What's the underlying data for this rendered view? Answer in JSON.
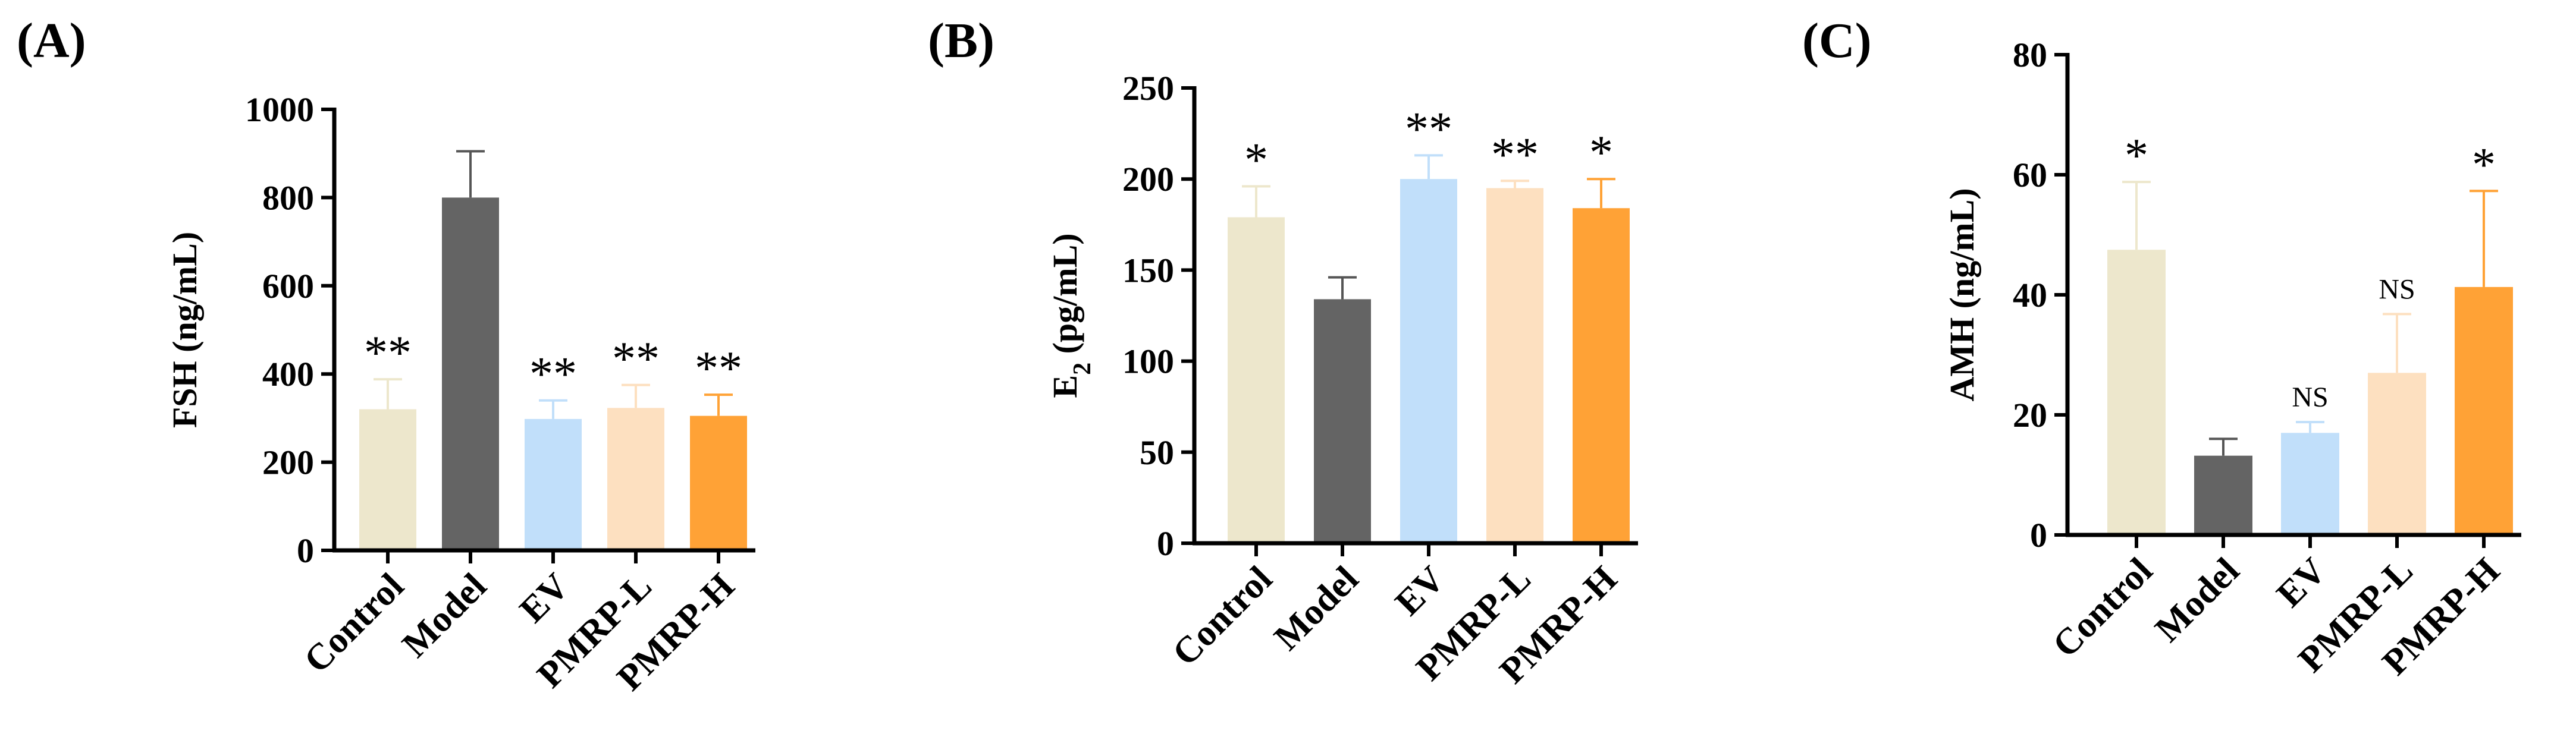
{
  "colors": {
    "Control": "#ede7cc",
    "Model": "#646464",
    "EV": "#c1dffa",
    "PMRP-L": "#fde0c0",
    "PMRP-H": "#ffa236",
    "axis": "#000000"
  },
  "chart_data": [
    {
      "type": "bar",
      "panel_label": "(A)",
      "ylabel": "FSH (ng/mL)",
      "categories": [
        "Control",
        "Model",
        "EV",
        "PMRP-L",
        "PMRP-H"
      ],
      "values": [
        320,
        800,
        298,
        323,
        305
      ],
      "errors": [
        68,
        105,
        42,
        52,
        48
      ],
      "significance": [
        "**",
        "",
        "**",
        "**",
        "**"
      ],
      "ylim": [
        0,
        1000
      ],
      "yticks": [
        "0",
        "200",
        "400",
        "600",
        "800",
        "1000"
      ]
    },
    {
      "type": "bar",
      "panel_label": "(B)",
      "ylabel": "E2 (pg/mL)",
      "ylabel_main": "E",
      "ylabel_sub": "2",
      "ylabel_unit": " (pg/mL)",
      "categories": [
        "Control",
        "Model",
        "EV",
        "PMRP-L",
        "PMRP-H"
      ],
      "values": [
        179,
        134,
        200,
        195,
        184
      ],
      "errors": [
        17,
        12,
        13,
        4,
        16
      ],
      "significance": [
        "*",
        "",
        "**",
        "**",
        "*"
      ],
      "ylim": [
        0,
        250
      ],
      "yticks": [
        "0",
        "50",
        "100",
        "150",
        "200",
        "250"
      ]
    },
    {
      "type": "bar",
      "panel_label": "(C)",
      "ylabel": "AMH (ng/mL)",
      "categories": [
        "Control",
        "Model",
        "EV",
        "PMRP-L",
        "PMRP-H"
      ],
      "values": [
        47.5,
        13.2,
        17.0,
        27.0,
        41.3
      ],
      "errors": [
        11.3,
        2.8,
        1.8,
        9.8,
        16.0
      ],
      "significance": [
        "*",
        "",
        "NS",
        "NS",
        "*"
      ],
      "ylim": [
        0,
        80
      ],
      "yticks": [
        "0",
        "20",
        "40",
        "60",
        "80"
      ]
    }
  ]
}
